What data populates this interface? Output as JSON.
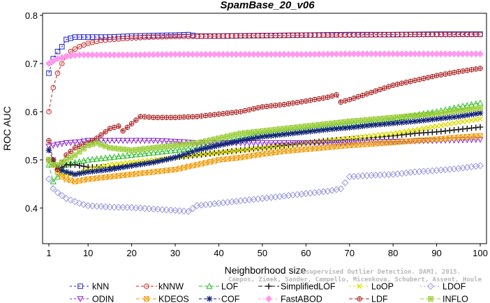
{
  "chart_data": {
    "type": "line",
    "title": "SpamBase_20_v06",
    "xlabel": "Neighborhood size",
    "ylabel": "ROC AUC",
    "xlim": [
      1,
      100
    ],
    "ylim": [
      0.36,
      0.8
    ],
    "xticks": [
      1,
      10,
      20,
      30,
      40,
      50,
      60,
      70,
      80,
      90,
      100
    ],
    "yticks": [
      0.4,
      0.5,
      0.6,
      0.7,
      0.8
    ],
    "grid": false,
    "legend_position": "bottom",
    "watermark": [
      "Unsupervised Outlier Detection. DAMI, 2015.",
      "Campos, Zimek, Sander, Campello, Micenkova, Schubert, Assent, Houle"
    ],
    "series": [
      {
        "name": "kNN",
        "color": "#2222cc",
        "dash": "3,3",
        "marker": "square",
        "points": [
          [
            1,
            0.68
          ],
          [
            2,
            0.71
          ],
          [
            3,
            0.725
          ],
          [
            4,
            0.735
          ],
          [
            5,
            0.75
          ],
          [
            7,
            0.755
          ],
          [
            10,
            0.755
          ],
          [
            15,
            0.755
          ],
          [
            20,
            0.757
          ],
          [
            25,
            0.758
          ],
          [
            30,
            0.759
          ],
          [
            33,
            0.76
          ],
          [
            35,
            0.757
          ],
          [
            40,
            0.757
          ],
          [
            50,
            0.758
          ],
          [
            60,
            0.759
          ],
          [
            70,
            0.76
          ],
          [
            80,
            0.76
          ],
          [
            90,
            0.761
          ],
          [
            100,
            0.761
          ]
        ]
      },
      {
        "name": "kNNW",
        "color": "#cc2222",
        "dash": "4,3",
        "marker": "circle",
        "points": [
          [
            1,
            0.6
          ],
          [
            2,
            0.65
          ],
          [
            3,
            0.68
          ],
          [
            4,
            0.7
          ],
          [
            5,
            0.715
          ],
          [
            6,
            0.725
          ],
          [
            8,
            0.735
          ],
          [
            10,
            0.742
          ],
          [
            13,
            0.748
          ],
          [
            17,
            0.751
          ],
          [
            20,
            0.753
          ],
          [
            25,
            0.755
          ],
          [
            30,
            0.756
          ],
          [
            40,
            0.757
          ],
          [
            50,
            0.758
          ],
          [
            60,
            0.759
          ],
          [
            70,
            0.759
          ],
          [
            80,
            0.76
          ],
          [
            90,
            0.76
          ],
          [
            100,
            0.76
          ]
        ]
      },
      {
        "name": "LOF",
        "color": "#22bb22",
        "dash": "5,3",
        "marker": "triangle",
        "points": [
          [
            1,
            0.49
          ],
          [
            2,
            0.455
          ],
          [
            3,
            0.465
          ],
          [
            4,
            0.48
          ],
          [
            5,
            0.49
          ],
          [
            7,
            0.495
          ],
          [
            10,
            0.5
          ],
          [
            15,
            0.505
          ],
          [
            20,
            0.51
          ],
          [
            25,
            0.515
          ],
          [
            30,
            0.52
          ],
          [
            35,
            0.525
          ],
          [
            40,
            0.535
          ],
          [
            45,
            0.545
          ],
          [
            50,
            0.555
          ],
          [
            55,
            0.56
          ],
          [
            60,
            0.565
          ],
          [
            65,
            0.57
          ],
          [
            70,
            0.575
          ],
          [
            75,
            0.58
          ],
          [
            80,
            0.585
          ],
          [
            85,
            0.593
          ],
          [
            90,
            0.6
          ],
          [
            95,
            0.61
          ],
          [
            100,
            0.618
          ]
        ]
      },
      {
        "name": "SimplifiedLOF",
        "color": "#111111",
        "dash": "6,3",
        "marker": "plus",
        "points": [
          [
            1,
            0.5
          ],
          [
            2,
            0.49
          ],
          [
            3,
            0.48
          ],
          [
            4,
            0.485
          ],
          [
            5,
            0.49
          ],
          [
            7,
            0.49
          ],
          [
            10,
            0.485
          ],
          [
            15,
            0.485
          ],
          [
            20,
            0.488
          ],
          [
            25,
            0.495
          ],
          [
            30,
            0.505
          ],
          [
            35,
            0.51
          ],
          [
            40,
            0.515
          ],
          [
            45,
            0.52
          ],
          [
            50,
            0.525
          ],
          [
            55,
            0.53
          ],
          [
            60,
            0.535
          ],
          [
            65,
            0.54
          ],
          [
            70,
            0.543
          ],
          [
            75,
            0.546
          ],
          [
            80,
            0.55
          ],
          [
            85,
            0.555
          ],
          [
            90,
            0.558
          ],
          [
            95,
            0.563
          ],
          [
            100,
            0.568
          ]
        ]
      },
      {
        "name": "LoOP",
        "color": "#dddd00",
        "dash": "3,3",
        "marker": "x",
        "points": [
          [
            1,
            0.5
          ],
          [
            2,
            0.49
          ],
          [
            3,
            0.48
          ],
          [
            4,
            0.47
          ],
          [
            5,
            0.47
          ],
          [
            7,
            0.47
          ],
          [
            10,
            0.48
          ],
          [
            15,
            0.49
          ],
          [
            20,
            0.495
          ],
          [
            25,
            0.5
          ],
          [
            30,
            0.505
          ],
          [
            35,
            0.51
          ],
          [
            40,
            0.515
          ],
          [
            45,
            0.52
          ],
          [
            50,
            0.525
          ],
          [
            55,
            0.53
          ],
          [
            60,
            0.535
          ],
          [
            65,
            0.54
          ],
          [
            70,
            0.545
          ],
          [
            75,
            0.55
          ],
          [
            80,
            0.555
          ],
          [
            85,
            0.562
          ],
          [
            90,
            0.57
          ],
          [
            95,
            0.578
          ],
          [
            100,
            0.585
          ]
        ]
      },
      {
        "name": "LDOF",
        "color": "#9999dd",
        "dash": "2,3",
        "marker": "diamond",
        "points": [
          [
            1,
            0.46
          ],
          [
            2,
            0.44
          ],
          [
            3,
            0.432
          ],
          [
            5,
            0.42
          ],
          [
            8,
            0.41
          ],
          [
            10,
            0.405
          ],
          [
            15,
            0.402
          ],
          [
            20,
            0.401
          ],
          [
            25,
            0.398
          ],
          [
            30,
            0.395
          ],
          [
            33,
            0.393
          ],
          [
            35,
            0.405
          ],
          [
            40,
            0.41
          ],
          [
            45,
            0.415
          ],
          [
            50,
            0.42
          ],
          [
            55,
            0.425
          ],
          [
            60,
            0.43
          ],
          [
            65,
            0.435
          ],
          [
            68,
            0.44
          ],
          [
            70,
            0.465
          ],
          [
            75,
            0.468
          ],
          [
            80,
            0.47
          ],
          [
            85,
            0.475
          ],
          [
            90,
            0.478
          ],
          [
            95,
            0.482
          ],
          [
            100,
            0.488
          ]
        ]
      },
      {
        "name": "ODIN",
        "color": "#8822cc",
        "dash": "3,3",
        "marker": "triangle-down",
        "points": [
          [
            1,
            0.528
          ],
          [
            2,
            0.53
          ],
          [
            3,
            0.532
          ],
          [
            5,
            0.535
          ],
          [
            8,
            0.537
          ],
          [
            10,
            0.54
          ],
          [
            15,
            0.54
          ],
          [
            20,
            0.54
          ],
          [
            25,
            0.54
          ],
          [
            30,
            0.538
          ],
          [
            35,
            0.535
          ],
          [
            40,
            0.535
          ],
          [
            50,
            0.535
          ],
          [
            60,
            0.535
          ],
          [
            70,
            0.536
          ],
          [
            80,
            0.538
          ],
          [
            90,
            0.54
          ],
          [
            100,
            0.542
          ]
        ]
      },
      {
        "name": "KDEOS",
        "color": "#ee9900",
        "dash": "5,3",
        "marker": "square-x",
        "points": [
          [
            1,
            0.5
          ],
          [
            2,
            0.49
          ],
          [
            3,
            0.475
          ],
          [
            4,
            0.465
          ],
          [
            5,
            0.46
          ],
          [
            7,
            0.455
          ],
          [
            10,
            0.46
          ],
          [
            15,
            0.465
          ],
          [
            20,
            0.47
          ],
          [
            25,
            0.475
          ],
          [
            30,
            0.48
          ],
          [
            35,
            0.49
          ],
          [
            40,
            0.5
          ],
          [
            45,
            0.505
          ],
          [
            50,
            0.512
          ],
          [
            55,
            0.518
          ],
          [
            60,
            0.522
          ],
          [
            65,
            0.526
          ],
          [
            70,
            0.53
          ],
          [
            75,
            0.533
          ],
          [
            80,
            0.536
          ],
          [
            85,
            0.54
          ],
          [
            90,
            0.543
          ],
          [
            95,
            0.547
          ],
          [
            100,
            0.55
          ]
        ]
      },
      {
        "name": "COF",
        "color": "#112277",
        "dash": "4,3",
        "marker": "asterisk",
        "points": [
          [
            1,
            0.52
          ],
          [
            2,
            0.5
          ],
          [
            3,
            0.485
          ],
          [
            4,
            0.478
          ],
          [
            5,
            0.475
          ],
          [
            7,
            0.47
          ],
          [
            10,
            0.475
          ],
          [
            15,
            0.48
          ],
          [
            20,
            0.488
          ],
          [
            25,
            0.495
          ],
          [
            30,
            0.505
          ],
          [
            35,
            0.52
          ],
          [
            40,
            0.53
          ],
          [
            45,
            0.54
          ],
          [
            50,
            0.548
          ],
          [
            55,
            0.553
          ],
          [
            60,
            0.558
          ],
          [
            65,
            0.563
          ],
          [
            70,
            0.567
          ],
          [
            75,
            0.572
          ],
          [
            80,
            0.576
          ],
          [
            85,
            0.58
          ],
          [
            90,
            0.585
          ],
          [
            95,
            0.59
          ],
          [
            100,
            0.597
          ]
        ]
      },
      {
        "name": "FastABOD",
        "color": "#ff99ee",
        "dash": "3,3",
        "marker": "diamond-filled",
        "points": [
          [
            1,
            0.7
          ],
          [
            2,
            0.705
          ],
          [
            3,
            0.71
          ],
          [
            5,
            0.715
          ],
          [
            8,
            0.718
          ],
          [
            10,
            0.718
          ],
          [
            20,
            0.718
          ],
          [
            30,
            0.719
          ],
          [
            40,
            0.719
          ],
          [
            50,
            0.719
          ],
          [
            60,
            0.719
          ],
          [
            70,
            0.72
          ],
          [
            80,
            0.72
          ],
          [
            90,
            0.72
          ],
          [
            100,
            0.72
          ]
        ]
      },
      {
        "name": "LDF",
        "color": "#aa2222",
        "dash": "5,3",
        "marker": "circle-plus",
        "points": [
          [
            1,
            0.54
          ],
          [
            2,
            0.5
          ],
          [
            3,
            0.48
          ],
          [
            5,
            0.51
          ],
          [
            7,
            0.525
          ],
          [
            10,
            0.535
          ],
          [
            12,
            0.545
          ],
          [
            15,
            0.565
          ],
          [
            17,
            0.57
          ],
          [
            18,
            0.56
          ],
          [
            20,
            0.575
          ],
          [
            22,
            0.59
          ],
          [
            25,
            0.588
          ],
          [
            30,
            0.588
          ],
          [
            35,
            0.59
          ],
          [
            40,
            0.595
          ],
          [
            45,
            0.6
          ],
          [
            50,
            0.61
          ],
          [
            55,
            0.615
          ],
          [
            60,
            0.622
          ],
          [
            65,
            0.63
          ],
          [
            67,
            0.635
          ],
          [
            68,
            0.62
          ],
          [
            70,
            0.625
          ],
          [
            75,
            0.64
          ],
          [
            80,
            0.655
          ],
          [
            85,
            0.665
          ],
          [
            90,
            0.675
          ],
          [
            95,
            0.683
          ],
          [
            100,
            0.69
          ]
        ]
      },
      {
        "name": "INFLO",
        "color": "#99cc33",
        "dash": "5,3",
        "marker": "square-cross",
        "points": [
          [
            1,
            0.5
          ],
          [
            2,
            0.49
          ],
          [
            3,
            0.49
          ],
          [
            5,
            0.5
          ],
          [
            7,
            0.51
          ],
          [
            10,
            0.53
          ],
          [
            12,
            0.535
          ],
          [
            15,
            0.525
          ],
          [
            20,
            0.52
          ],
          [
            25,
            0.525
          ],
          [
            30,
            0.53
          ],
          [
            35,
            0.535
          ],
          [
            40,
            0.545
          ],
          [
            45,
            0.555
          ],
          [
            50,
            0.56
          ],
          [
            55,
            0.565
          ],
          [
            60,
            0.57
          ],
          [
            65,
            0.575
          ],
          [
            70,
            0.58
          ],
          [
            75,
            0.584
          ],
          [
            80,
            0.588
          ],
          [
            85,
            0.592
          ],
          [
            90,
            0.596
          ],
          [
            95,
            0.602
          ],
          [
            100,
            0.608
          ]
        ]
      }
    ]
  }
}
